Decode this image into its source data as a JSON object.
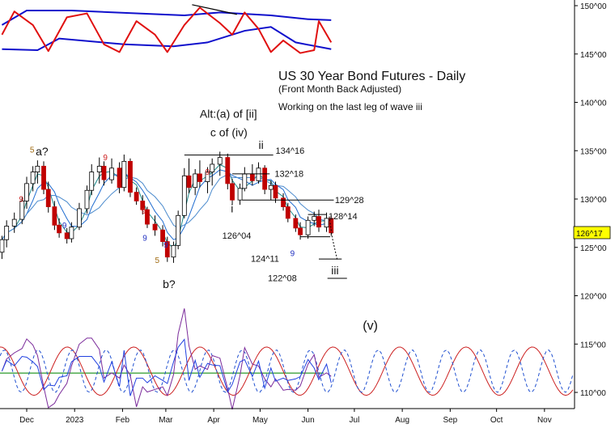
{
  "chart_data": {
    "type": "candlestick",
    "title": "US 30 Year Bond Futures - Daily",
    "subtitle": "(Front Month Back Adjusted)",
    "note": "Working on the last leg of wave iii",
    "x_tick_labels": [
      "Dec",
      "2023",
      "Feb",
      "Mar",
      "Apr",
      "May",
      "Jun",
      "Jul",
      "Aug",
      "Sep",
      "Oct",
      "Nov"
    ],
    "y_tick_labels": [
      "150^00",
      "145^00",
      "140^00",
      "135^00",
      "130^00",
      "125^00",
      "120^00",
      "115^00",
      "110^00"
    ],
    "y_range": [
      108,
      151
    ],
    "last_price": "126^17",
    "colors": {
      "up": "#000000",
      "down": "#c00000",
      "blue_band": "#1010cc",
      "red_osc": "#e01010",
      "last_price_bg": "#ffff00"
    },
    "candles": [
      {
        "d": "2022-11-15",
        "o": 124.5,
        "h": 126.2,
        "l": 123.8,
        "c": 125.8
      },
      {
        "d": "2022-11-18",
        "o": 125.8,
        "h": 127.8,
        "l": 125.0,
        "c": 127.2
      },
      {
        "d": "2022-11-23",
        "o": 127.2,
        "h": 128.6,
        "l": 126.5,
        "c": 127.9
      },
      {
        "d": "2022-11-28",
        "o": 127.9,
        "h": 130.2,
        "l": 127.4,
        "c": 129.8
      },
      {
        "d": "2022-12-01",
        "o": 129.8,
        "h": 132.3,
        "l": 129.0,
        "c": 131.6
      },
      {
        "d": "2022-12-05",
        "o": 131.6,
        "h": 133.4,
        "l": 130.8,
        "c": 132.8
      },
      {
        "d": "2022-12-08",
        "o": 132.8,
        "h": 134.0,
        "l": 131.6,
        "c": 133.4
      },
      {
        "d": "2022-12-12",
        "o": 133.4,
        "h": 133.9,
        "l": 130.5,
        "c": 131.0
      },
      {
        "d": "2022-12-15",
        "o": 131.0,
        "h": 131.8,
        "l": 128.6,
        "c": 129.2
      },
      {
        "d": "2022-12-19",
        "o": 129.2,
        "h": 129.8,
        "l": 126.8,
        "c": 127.3
      },
      {
        "d": "2022-12-22",
        "o": 127.3,
        "h": 128.0,
        "l": 126.0,
        "c": 126.5
      },
      {
        "d": "2022-12-27",
        "o": 126.5,
        "h": 127.0,
        "l": 125.4,
        "c": 125.9
      },
      {
        "d": "2022-12-30",
        "o": 125.9,
        "h": 127.6,
        "l": 125.5,
        "c": 127.1
      },
      {
        "d": "2023-01-04",
        "o": 127.1,
        "h": 129.6,
        "l": 126.8,
        "c": 129.0
      },
      {
        "d": "2023-01-09",
        "o": 129.0,
        "h": 131.4,
        "l": 128.5,
        "c": 130.9
      },
      {
        "d": "2023-01-12",
        "o": 130.9,
        "h": 133.6,
        "l": 130.4,
        "c": 132.8
      },
      {
        "d": "2023-01-17",
        "o": 132.8,
        "h": 134.3,
        "l": 131.6,
        "c": 133.4
      },
      {
        "d": "2023-01-20",
        "o": 133.4,
        "h": 133.9,
        "l": 131.4,
        "c": 132.0
      },
      {
        "d": "2023-01-25",
        "o": 132.0,
        "h": 134.2,
        "l": 131.6,
        "c": 133.2
      },
      {
        "d": "2023-01-30",
        "o": 133.2,
        "h": 133.8,
        "l": 130.6,
        "c": 131.2
      },
      {
        "d": "2023-02-02",
        "o": 131.2,
        "h": 134.6,
        "l": 130.8,
        "c": 133.9
      },
      {
        "d": "2023-02-06",
        "o": 133.9,
        "h": 134.2,
        "l": 130.2,
        "c": 130.7
      },
      {
        "d": "2023-02-10",
        "o": 130.7,
        "h": 131.2,
        "l": 129.4,
        "c": 129.8
      },
      {
        "d": "2023-02-14",
        "o": 129.8,
        "h": 130.4,
        "l": 128.4,
        "c": 128.9
      },
      {
        "d": "2023-02-17",
        "o": 128.9,
        "h": 129.2,
        "l": 127.0,
        "c": 127.4
      },
      {
        "d": "2023-02-22",
        "o": 127.4,
        "h": 128.3,
        "l": 126.2,
        "c": 126.8
      },
      {
        "d": "2023-02-27",
        "o": 126.8,
        "h": 127.3,
        "l": 125.1,
        "c": 125.6
      },
      {
        "d": "2023-03-02",
        "o": 125.6,
        "h": 126.1,
        "l": 123.5,
        "c": 124.0
      },
      {
        "d": "2023-03-06",
        "o": 124.0,
        "h": 125.6,
        "l": 123.4,
        "c": 125.2
      },
      {
        "d": "2023-03-09",
        "o": 125.2,
        "h": 128.8,
        "l": 124.8,
        "c": 128.3
      },
      {
        "d": "2023-03-13",
        "o": 128.3,
        "h": 133.2,
        "l": 128.0,
        "c": 132.4
      },
      {
        "d": "2023-03-16",
        "o": 132.4,
        "h": 134.2,
        "l": 130.6,
        "c": 131.2
      },
      {
        "d": "2023-03-20",
        "o": 131.2,
        "h": 133.1,
        "l": 130.4,
        "c": 132.6
      },
      {
        "d": "2023-03-23",
        "o": 132.6,
        "h": 134.0,
        "l": 131.2,
        "c": 131.8
      },
      {
        "d": "2023-03-28",
        "o": 131.8,
        "h": 133.3,
        "l": 130.6,
        "c": 132.8
      },
      {
        "d": "2023-03-31",
        "o": 132.8,
        "h": 134.2,
        "l": 131.4,
        "c": 133.6
      },
      {
        "d": "2023-04-05",
        "o": 133.6,
        "h": 134.9,
        "l": 132.4,
        "c": 134.3
      },
      {
        "d": "2023-04-10",
        "o": 134.3,
        "h": 134.7,
        "l": 131.0,
        "c": 131.6
      },
      {
        "d": "2023-04-13",
        "o": 131.6,
        "h": 132.1,
        "l": 129.4,
        "c": 129.9
      },
      {
        "d": "2023-04-18",
        "o": 129.9,
        "h": 131.6,
        "l": 129.4,
        "c": 131.1
      },
      {
        "d": "2023-04-21",
        "o": 131.1,
        "h": 133.3,
        "l": 130.8,
        "c": 132.6
      },
      {
        "d": "2023-04-26",
        "o": 132.6,
        "h": 133.6,
        "l": 131.4,
        "c": 131.9
      },
      {
        "d": "2023-04-30",
        "o": 131.9,
        "h": 133.8,
        "l": 131.6,
        "c": 133.2
      },
      {
        "d": "2023-05-04",
        "o": 133.2,
        "h": 133.5,
        "l": 130.5,
        "c": 131.0
      },
      {
        "d": "2023-05-08",
        "o": 131.0,
        "h": 131.9,
        "l": 129.9,
        "c": 131.4
      },
      {
        "d": "2023-05-11",
        "o": 131.4,
        "h": 131.8,
        "l": 129.6,
        "c": 130.1
      },
      {
        "d": "2023-05-16",
        "o": 130.1,
        "h": 130.6,
        "l": 128.8,
        "c": 129.2
      },
      {
        "d": "2023-05-19",
        "o": 129.2,
        "h": 129.6,
        "l": 127.6,
        "c": 128.0
      },
      {
        "d": "2023-05-24",
        "o": 128.0,
        "h": 128.4,
        "l": 126.6,
        "c": 127.0
      },
      {
        "d": "2023-05-27",
        "o": 127.0,
        "h": 127.6,
        "l": 125.8,
        "c": 126.3
      },
      {
        "d": "2023-06-01",
        "o": 126.3,
        "h": 128.2,
        "l": 125.9,
        "c": 127.8
      },
      {
        "d": "2023-06-05",
        "o": 127.8,
        "h": 128.7,
        "l": 127.2,
        "c": 128.2
      },
      {
        "d": "2023-06-08",
        "o": 128.2,
        "h": 128.9,
        "l": 126.6,
        "c": 127.1
      },
      {
        "d": "2023-06-13",
        "o": 127.1,
        "h": 128.6,
        "l": 126.6,
        "c": 128.0
      },
      {
        "d": "2023-06-16",
        "o": 128.0,
        "h": 128.3,
        "l": 126.2,
        "c": 126.5
      }
    ],
    "upper_panel": {
      "blue_upper": [
        [
          0,
          148
        ],
        [
          4,
          149.5
        ],
        [
          12,
          149.5
        ],
        [
          22,
          149.2
        ],
        [
          30,
          149
        ],
        [
          36,
          149.3
        ],
        [
          44,
          149
        ],
        [
          50,
          148.6
        ],
        [
          54,
          148.5
        ]
      ],
      "blue_lower": [
        [
          0,
          145.5
        ],
        [
          6,
          145.4
        ],
        [
          10,
          146.6
        ],
        [
          20,
          146
        ],
        [
          28,
          145.8
        ],
        [
          34,
          146.2
        ],
        [
          40,
          147.4
        ],
        [
          44,
          147.8
        ],
        [
          48,
          146.2
        ],
        [
          54,
          145.5
        ]
      ],
      "red_osc": [
        [
          0,
          147
        ],
        [
          2,
          149.4
        ],
        [
          5,
          148
        ],
        [
          8,
          145.3
        ],
        [
          11,
          148.8
        ],
        [
          14,
          149.2
        ],
        [
          17,
          146
        ],
        [
          19,
          145.2
        ],
        [
          22,
          148.4
        ],
        [
          25,
          147
        ],
        [
          27,
          145.2
        ],
        [
          30,
          148
        ],
        [
          33,
          149.8
        ],
        [
          36,
          148.2
        ],
        [
          38,
          147
        ],
        [
          40,
          149.3
        ],
        [
          42,
          147.6
        ],
        [
          44,
          145.2
        ],
        [
          46,
          146.4
        ],
        [
          49,
          145.1
        ],
        [
          51,
          145.4
        ],
        [
          52,
          148.4
        ],
        [
          54,
          146.2
        ]
      ]
    },
    "waves": [
      {
        "period": 43,
        "amp": 2.5,
        "phase": 1.5,
        "color": "#cc2020",
        "dash": false
      },
      {
        "period": 22,
        "amp": 2.2,
        "phase": 0.8,
        "color": "#2050d0",
        "dash": true
      }
    ],
    "wave_x_range": [
      0,
      150
    ],
    "labels": [
      {
        "text": "5",
        "i": 4.5,
        "y": 134.8,
        "color": "#a06a10",
        "size": 10
      },
      {
        "text": "a?",
        "i": 5.6,
        "y": 134.5,
        "color": "#111",
        "size": 14
      },
      {
        "text": "9",
        "i": 2.6,
        "y": 129.7,
        "color": "#cc2020",
        "size": 10
      },
      {
        "text": "9",
        "i": 10.4,
        "y": 127.0,
        "color": "#2030c0",
        "size": 10
      },
      {
        "text": "9",
        "i": 16.8,
        "y": 134.0,
        "color": "#cc2020",
        "size": 10
      },
      {
        "text": "9",
        "i": 22.8,
        "y": 128.5,
        "color": "#cc2020",
        "size": 10
      },
      {
        "text": "9",
        "i": 23.0,
        "y": 125.7,
        "color": "#2030c0",
        "size": 10
      },
      {
        "text": "9",
        "i": 26.2,
        "y": 125.0,
        "color": "#2030c0",
        "size": 10
      },
      {
        "text": "5",
        "i": 25.0,
        "y": 123.4,
        "color": "#a06a10",
        "size": 10
      },
      {
        "text": "b?",
        "i": 26.0,
        "y": 120.8,
        "color": "#111",
        "size": 14
      },
      {
        "text": "Alt:(a) of [ii]",
        "i": 33.0,
        "y": 138.4,
        "color": "#111",
        "size": 14
      },
      {
        "text": "c of (iv)",
        "i": 34.6,
        "y": 136.5,
        "color": "#111",
        "size": 14
      },
      {
        "text": "9",
        "i": 33.7,
        "y": 132.5,
        "color": "#cc2020",
        "size": 10
      },
      {
        "text": "ii",
        "i": 42.0,
        "y": 135.2,
        "color": "#111",
        "size": 14
      },
      {
        "text": "134^16",
        "i": 45.0,
        "y": 134.7,
        "color": "#111",
        "size": 11
      },
      {
        "text": "132^18",
        "i": 44.8,
        "y": 132.3,
        "color": "#111",
        "size": 11
      },
      {
        "text": "i",
        "i": 37.7,
        "y": 128.6,
        "color": "#111",
        "size": 14
      },
      {
        "text": "129^28",
        "i": 54.7,
        "y": 129.6,
        "color": "#111",
        "size": 11
      },
      {
        "text": "128^14",
        "i": 53.4,
        "y": 127.9,
        "color": "#111",
        "size": 11
      },
      {
        "text": "126^04",
        "i": 36.3,
        "y": 125.9,
        "color": "#111",
        "size": 11
      },
      {
        "text": "9",
        "i": 47.3,
        "y": 124.1,
        "color": "#2030c0",
        "size": 10
      },
      {
        "text": "124^11",
        "i": 40.8,
        "y": 123.5,
        "color": "#111",
        "size": 11
      },
      {
        "text": "122^08",
        "i": 43.5,
        "y": 121.5,
        "color": "#111",
        "size": 11
      },
      {
        "text": "iii",
        "i": 54.0,
        "y": 122.2,
        "color": "#111",
        "size": 14
      },
      {
        "text": "(v)",
        "i": 60.0,
        "y": 116.5,
        "color": "#111",
        "size": 16
      }
    ]
  },
  "page": {
    "title": "US 30 Year Bond Futures - Daily",
    "subtitle": "(Front Month Back Adjusted)",
    "note": "Working on the last leg of wave iii",
    "last_price": "126^17"
  }
}
